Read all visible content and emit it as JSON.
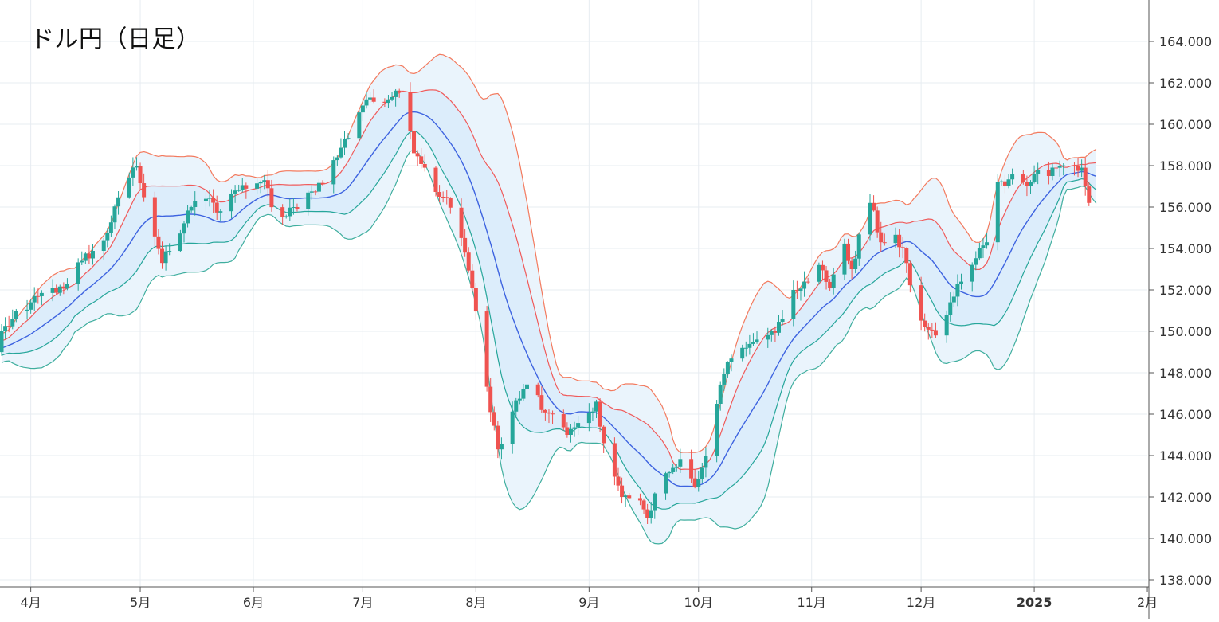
{
  "chart_data": {
    "type": "candlestick",
    "title": "ドル円（日足）",
    "y_axis_side": "right",
    "ylim": [
      137.6,
      165.5
    ],
    "yticks": [
      "164.000",
      "162.000",
      "160.000",
      "158.000",
      "156.000",
      "154.000",
      "152.000",
      "150.000",
      "148.000",
      "146.000",
      "144.000",
      "142.000",
      "140.000",
      "138.000"
    ],
    "ytick_values": [
      164,
      162,
      160,
      158,
      156,
      154,
      152,
      150,
      148,
      146,
      144,
      142,
      140,
      138
    ],
    "x_range_days": [
      0,
      307
    ],
    "xticks": [
      {
        "label": "4月",
        "day": 8,
        "bold": false
      },
      {
        "label": "5月",
        "day": 38,
        "bold": false
      },
      {
        "label": "6月",
        "day": 69,
        "bold": false
      },
      {
        "label": "7月",
        "day": 99,
        "bold": false
      },
      {
        "label": "8月",
        "day": 130,
        "bold": false
      },
      {
        "label": "9月",
        "day": 161,
        "bold": false
      },
      {
        "label": "10月",
        "day": 191,
        "bold": false
      },
      {
        "label": "11月",
        "day": 222,
        "bold": false
      },
      {
        "label": "12月",
        "day": 252,
        "bold": false
      },
      {
        "label": "2025",
        "day": 283,
        "bold": true
      },
      {
        "label": "2月",
        "day": 314,
        "bold": false
      }
    ],
    "colors": {
      "up": "#26a69a",
      "down": "#ef5350",
      "mid": "#3d63e0",
      "upper2": "#f37a5e",
      "upper1": "#f05a5a",
      "lower1": "#26a69a",
      "lower2": "#3fae9e",
      "band_outer": "#eaf4fc",
      "band_inner": "#dcedfb",
      "grid": "#e7ecf1"
    },
    "anchors": [
      {
        "day": 0,
        "close": 150.0
      },
      {
        "day": 8,
        "close": 151.4
      },
      {
        "day": 18,
        "close": 152.3
      },
      {
        "day": 22,
        "close": 153.4
      },
      {
        "day": 28,
        "close": 154.4
      },
      {
        "day": 34,
        "close": 157.2
      },
      {
        "day": 37,
        "close": 158.0
      },
      {
        "day": 40,
        "close": 156.0
      },
      {
        "day": 44,
        "close": 153.3
      },
      {
        "day": 48,
        "close": 154.5
      },
      {
        "day": 52,
        "close": 156.0
      },
      {
        "day": 56,
        "close": 156.4
      },
      {
        "day": 60,
        "close": 155.8
      },
      {
        "day": 64,
        "close": 156.8
      },
      {
        "day": 68,
        "close": 157.1
      },
      {
        "day": 72,
        "close": 157.3
      },
      {
        "day": 75,
        "close": 155.4
      },
      {
        "day": 80,
        "close": 156.0
      },
      {
        "day": 84,
        "close": 156.7
      },
      {
        "day": 88,
        "close": 157.1
      },
      {
        "day": 92,
        "close": 158.4
      },
      {
        "day": 96,
        "close": 160.0
      },
      {
        "day": 100,
        "close": 161.2
      },
      {
        "day": 106,
        "close": 161.2
      },
      {
        "day": 110,
        "close": 161.6
      },
      {
        "day": 113,
        "close": 158.6
      },
      {
        "day": 116,
        "close": 157.9
      },
      {
        "day": 120,
        "close": 156.5
      },
      {
        "day": 124,
        "close": 155.8
      },
      {
        "day": 127,
        "close": 153.8
      },
      {
        "day": 132,
        "close": 149.0
      },
      {
        "day": 134,
        "close": 146.1
      },
      {
        "day": 136,
        "close": 144.3
      },
      {
        "day": 139,
        "close": 145.8
      },
      {
        "day": 143,
        "close": 147.2
      },
      {
        "day": 146,
        "close": 147.3
      },
      {
        "day": 148,
        "close": 146.2
      },
      {
        "day": 151,
        "close": 146.0
      },
      {
        "day": 155,
        "close": 145.0
      },
      {
        "day": 160,
        "close": 145.5
      },
      {
        "day": 163,
        "close": 146.6
      },
      {
        "day": 166,
        "close": 143.8
      },
      {
        "day": 170,
        "close": 142.0
      },
      {
        "day": 174,
        "close": 141.9
      },
      {
        "day": 177,
        "close": 141.0
      },
      {
        "day": 180,
        "close": 142.7
      },
      {
        "day": 184,
        "close": 143.4
      },
      {
        "day": 187,
        "close": 143.9
      },
      {
        "day": 190,
        "close": 142.5
      },
      {
        "day": 193,
        "close": 144.0
      },
      {
        "day": 196,
        "close": 146.5
      },
      {
        "day": 199,
        "close": 148.5
      },
      {
        "day": 203,
        "close": 149.2
      },
      {
        "day": 207,
        "close": 149.6
      },
      {
        "day": 211,
        "close": 150.0
      },
      {
        "day": 214,
        "close": 150.6
      },
      {
        "day": 217,
        "close": 152.0
      },
      {
        "day": 220,
        "close": 152.4
      },
      {
        "day": 224,
        "close": 153.2
      },
      {
        "day": 227,
        "close": 152.1
      },
      {
        "day": 230,
        "close": 154.5
      },
      {
        "day": 233,
        "close": 153.0
      },
      {
        "day": 236,
        "close": 155.2
      },
      {
        "day": 238,
        "close": 156.2
      },
      {
        "day": 241,
        "close": 154.3
      },
      {
        "day": 244,
        "close": 154.6
      },
      {
        "day": 247,
        "close": 154.0
      },
      {
        "day": 250,
        "close": 151.5
      },
      {
        "day": 253,
        "close": 150.2
      },
      {
        "day": 256,
        "close": 149.8
      },
      {
        "day": 259,
        "close": 150.8
      },
      {
        "day": 262,
        "close": 152.3
      },
      {
        "day": 265,
        "close": 153.2
      },
      {
        "day": 268,
        "close": 154.0
      },
      {
        "day": 270,
        "close": 154.3
      },
      {
        "day": 272,
        "close": 157.4
      },
      {
        "day": 275,
        "close": 157.0
      },
      {
        "day": 278,
        "close": 157.8
      },
      {
        "day": 281,
        "close": 157.0
      },
      {
        "day": 284,
        "close": 157.8
      },
      {
        "day": 287,
        "close": 157.5
      },
      {
        "day": 290,
        "close": 158.0
      },
      {
        "day": 293,
        "close": 158.2
      },
      {
        "day": 296,
        "close": 157.9
      },
      {
        "day": 298,
        "close": 156.2
      },
      {
        "day": 300,
        "close": 156.1
      }
    ]
  }
}
